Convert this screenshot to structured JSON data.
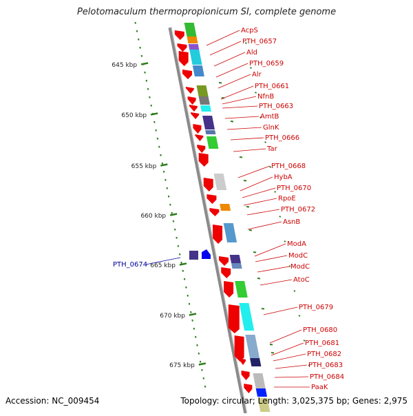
{
  "title": "Pelotomaculum thermopropionicum SI, complete genome",
  "footer": {
    "accession": "Accession: NC_009454",
    "summary": "Topology: circular; Length: 3,025,375 bp; Genes: 2,975"
  },
  "colors": {
    "backbone": "#8a8a8a",
    "tick": "#2e7d1e",
    "gene_label": "#cc0000",
    "leader_red": "#cc0000",
    "blue_label": "#000099",
    "cds_red": "#ee0000"
  },
  "scale_labels": [
    {
      "label": "645 kbp",
      "kbp": 645
    },
    {
      "label": "650 kbp",
      "kbp": 650
    },
    {
      "label": "655 kbp",
      "kbp": 655
    },
    {
      "label": "660 kbp",
      "kbp": 660
    },
    {
      "label": "665 kbp",
      "kbp": 665
    },
    {
      "label": "670 kbp",
      "kbp": 670
    },
    {
      "label": "675 kbp",
      "kbp": 675
    }
  ],
  "gene_labels": [
    "AcpS",
    "PTH_0657",
    "Ald",
    "PTH_0659",
    "Alr",
    "PTH_0661",
    "NfnB",
    "PTH_0663",
    "AmtB",
    "GlnK",
    "PTH_0666",
    "Tar",
    "PTH_0668",
    "HybA",
    "PTH_0670",
    "RpoE",
    "PTH_0672",
    "AsnB",
    "ModA",
    "ModC",
    "ModC",
    "AtoC",
    "PTH_0679",
    "PTH_0680",
    "PTH_0681",
    "PTH_0682",
    "PTH_0683",
    "PTH_0684",
    "PaaK"
  ],
  "left_labels": [
    "PTH_0674"
  ]
}
